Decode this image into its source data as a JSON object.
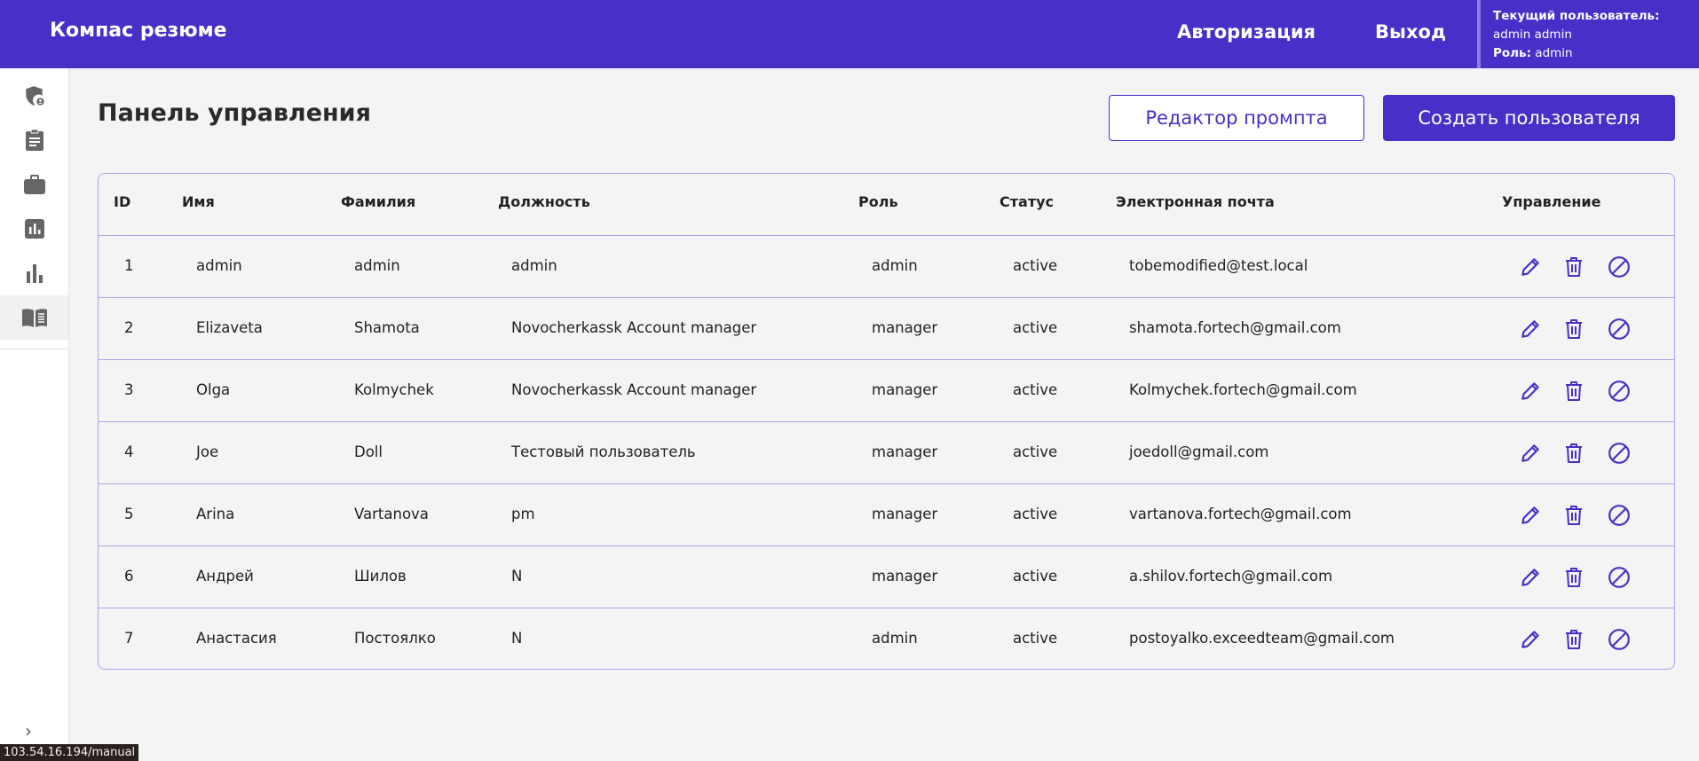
{
  "header": {
    "brand": "Компас резюме",
    "nav": [
      "Авторизация",
      "Выход"
    ],
    "current_user_label": "Текущий пользователь:",
    "current_user": "admin admin",
    "role_label": "Роль:",
    "role": "admin"
  },
  "sidebar": {
    "icons": [
      "shield-user-icon",
      "clipboard-icon",
      "briefcase-icon",
      "report-chart-icon",
      "bar-chart-icon",
      "manual-book-icon"
    ],
    "active": 5
  },
  "status_url": "103.54.16.194/manual",
  "page": {
    "title": "Панель управления",
    "prompt_editor": "Редактор промпта",
    "create_user": "Создать пользователя"
  },
  "table": {
    "columns": [
      "ID",
      "Имя",
      "Фамилия",
      "Должность",
      "Роль",
      "Статус",
      "Электронная почта",
      "Управление"
    ],
    "rows": [
      [
        "1",
        "admin",
        "admin",
        "admin",
        "admin",
        "active",
        "tobemodified@test.local"
      ],
      [
        "2",
        "Elizaveta",
        "Shamota",
        "Novocherkassk Account manager",
        "manager",
        "active",
        "shamota.fortech@gmail.com"
      ],
      [
        "3",
        "Olga",
        "Kolmychek",
        "Novocherkassk Account manager",
        "manager",
        "active",
        "Kolmychek.fortech@gmail.com"
      ],
      [
        "4",
        "Joe",
        "Doll",
        "Тестовый пользователь",
        "manager",
        "active",
        "joedoll@gmail.com"
      ],
      [
        "5",
        "Arina",
        "Vartanova",
        "pm",
        "manager",
        "active",
        "vartanova.fortech@gmail.com"
      ],
      [
        "6",
        "Андрей",
        "Шилов",
        "N",
        "manager",
        "active",
        "a.shilov.fortech@gmail.com"
      ],
      [
        "7",
        "Анастасия",
        "Постоялко",
        "N",
        "admin",
        "active",
        "postoyalko.exceedteam@gmail.com"
      ]
    ],
    "actions": [
      "edit-icon",
      "delete-icon",
      "block-icon"
    ]
  },
  "colors": {
    "accent": "#4a2ec8",
    "border": "#aaa4ea"
  }
}
